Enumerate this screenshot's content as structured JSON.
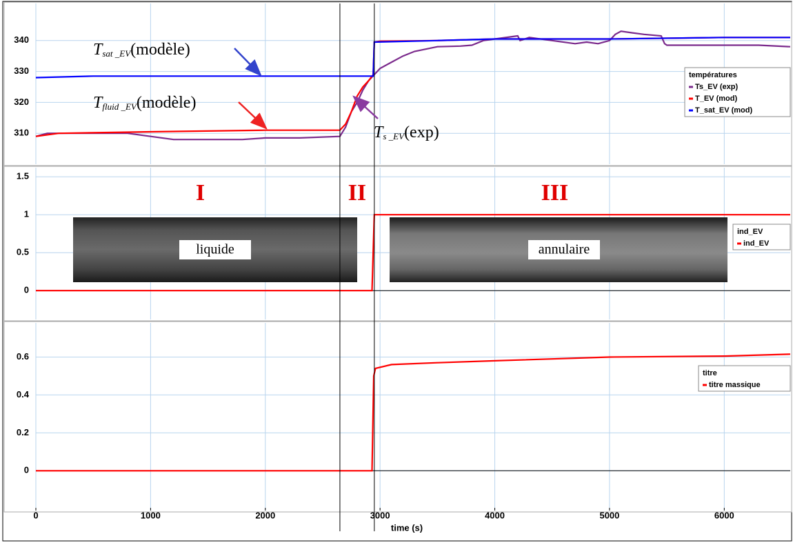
{
  "chart_data": [
    {
      "type": "line",
      "xlim": [
        0,
        6575
      ],
      "xticks": [
        0,
        1000,
        2000,
        3000,
        4000,
        5000,
        6000
      ],
      "ylim": [
        300,
        352
      ],
      "yticks": [
        310,
        320,
        330,
        340
      ],
      "grid": true,
      "legend": "right",
      "legend_title": "températures",
      "vlines": [
        2650,
        2950
      ],
      "series": [
        {
          "name": "Ts_EV (exp)",
          "color": "#7b2a8c",
          "x": [
            0,
            100,
            300,
            500,
            800,
            1000,
            1200,
            1500,
            1800,
            2000,
            2300,
            2650,
            2700,
            2750,
            2800,
            2850,
            2900,
            2950,
            3000,
            3100,
            3200,
            3300,
            3500,
            3700,
            3800,
            3900,
            4000,
            4200,
            4220,
            4300,
            4500,
            4700,
            4800,
            4900,
            5000,
            5050,
            5100,
            5200,
            5300,
            5450,
            5480,
            5500,
            5800,
            6000,
            6300,
            6575
          ],
          "values": [
            309,
            310,
            310,
            310,
            310,
            309,
            308,
            308,
            308,
            308.5,
            308.5,
            309,
            312,
            317,
            320,
            324,
            327,
            329,
            331,
            333,
            335,
            336.5,
            338,
            338.2,
            338.5,
            340,
            340.5,
            341.5,
            340,
            341,
            340,
            339,
            339.5,
            339,
            340,
            342,
            343,
            342.5,
            342,
            341.5,
            339,
            338.5,
            338.5,
            338.5,
            338.5,
            338
          ]
        },
        {
          "name": "T_EV (mod)",
          "color": "#ff0000",
          "x": [
            0,
            200,
            1000,
            2000,
            2650,
            2700,
            2750,
            2800,
            2850,
            2900,
            2940,
            2950,
            3000,
            3500,
            4000,
            5000,
            6000,
            6575
          ],
          "values": [
            309,
            310,
            310.5,
            311,
            311,
            313,
            317,
            322,
            325,
            327,
            329,
            339.5,
            339.8,
            340,
            340.5,
            340.5,
            341,
            341
          ]
        },
        {
          "name": "T_sat_EV (mod)",
          "color": "#0000ff",
          "x": [
            0,
            500,
            1000,
            1500,
            2000,
            2500,
            2940,
            2950,
            3500,
            4000,
            5000,
            6000,
            6575
          ],
          "values": [
            328,
            328.5,
            328.5,
            328.5,
            328.5,
            328.5,
            328.5,
            339.5,
            340,
            340.5,
            340.5,
            341,
            341
          ]
        }
      ],
      "annotations": [
        {
          "main": "T",
          "sub": "sat _EV",
          "suffix": "(modèle)"
        },
        {
          "main": "T",
          "sub": "fluid _EV",
          "suffix": "(modèle)"
        },
        {
          "main": "T",
          "sub": "s _EV",
          "suffix": "(exp)"
        }
      ]
    },
    {
      "type": "line",
      "xlim": [
        0,
        6575
      ],
      "xticks": [
        0,
        1000,
        2000,
        3000,
        4000,
        5000,
        6000
      ],
      "ylim": [
        -0.38,
        1.62
      ],
      "yticks": [
        0,
        0.5,
        1,
        1.5
      ],
      "grid": true,
      "legend": "right",
      "legend_title": "ind_EV",
      "regions": [
        "I",
        "II",
        "III"
      ],
      "flow_images": [
        "liquide",
        "annulaire"
      ],
      "series": [
        {
          "name": "ind_EV",
          "color": "#ff0000",
          "x": [
            0,
            2930,
            2950,
            6575
          ],
          "values": [
            0,
            0,
            1,
            1
          ]
        }
      ]
    },
    {
      "type": "line",
      "xlim": [
        0,
        6575
      ],
      "xticks": [
        0,
        1000,
        2000,
        3000,
        4000,
        5000,
        6000
      ],
      "ylim": [
        -0.21,
        0.78
      ],
      "yticks": [
        0,
        0.2,
        0.4,
        0.6
      ],
      "grid": true,
      "legend": "right",
      "legend_title": "titre",
      "x_label": "time (s)",
      "series": [
        {
          "name": "titre massique",
          "color": "#ff0000",
          "x": [
            0,
            2930,
            2945,
            2960,
            3100,
            3500,
            4000,
            5000,
            6000,
            6575
          ],
          "values": [
            0,
            0,
            0.5,
            0.54,
            0.56,
            0.57,
            0.58,
            0.6,
            0.605,
            0.615
          ]
        }
      ]
    }
  ]
}
